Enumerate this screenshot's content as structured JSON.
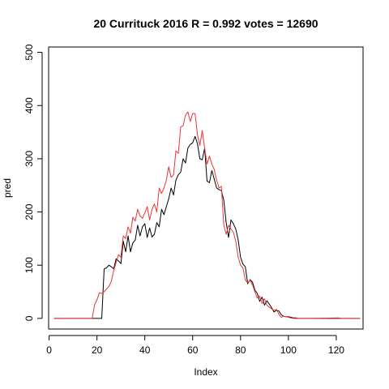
{
  "chart_data": {
    "type": "line",
    "title": "20 Currituck 2016 R = 0.992 votes = 12690",
    "xlabel": "Index",
    "ylabel": "pred",
    "xlim": [
      -0.2,
      131.2
    ],
    "ylim": [
      -20,
      510
    ],
    "xticks": [
      0,
      20,
      40,
      60,
      80,
      100,
      120
    ],
    "yticks": [
      0,
      100,
      200,
      300,
      400,
      500
    ],
    "grid": false,
    "legend": "none",
    "series": [
      {
        "color": "#000000",
        "x": [
          2,
          19,
          20,
          21,
          22,
          23,
          24,
          25,
          26,
          27,
          28,
          29,
          30,
          31,
          32,
          33,
          34,
          35,
          36,
          37,
          38,
          39,
          40,
          41,
          42,
          43,
          44,
          45,
          46,
          47,
          48,
          49,
          50,
          51,
          52,
          53,
          54,
          55,
          56,
          57,
          58,
          59,
          60,
          61,
          62,
          63,
          64,
          65,
          66,
          67,
          68,
          69,
          70,
          71,
          72,
          73,
          74,
          75,
          76,
          77,
          78,
          79,
          80,
          81,
          82,
          83,
          84,
          85,
          86,
          87,
          88,
          89,
          90,
          91,
          92,
          93,
          94,
          95,
          96,
          97,
          98,
          99,
          100,
          101,
          102,
          103,
          104,
          105,
          110,
          121,
          122,
          130
        ],
        "y": [
          0,
          0,
          0,
          0,
          0,
          93,
          95,
          100,
          97,
          93,
          112,
          108,
          103,
          145,
          125,
          155,
          125,
          142,
          147,
          175,
          155,
          172,
          178,
          152,
          170,
          153,
          158,
          180,
          172,
          205,
          195,
          210,
          225,
          245,
          232,
          260,
          270,
          275,
          300,
          292,
          320,
          327,
          330,
          342,
          328,
          300,
          298,
          320,
          258,
          255,
          278,
          262,
          245,
          242,
          240,
          222,
          180,
          152,
          185,
          178,
          168,
          148,
          115,
          102,
          97,
          65,
          73,
          68,
          53,
          47,
          32,
          40,
          25,
          33,
          27,
          20,
          12,
          15,
          14,
          7,
          4,
          3,
          3,
          2,
          1,
          1,
          0,
          0,
          0,
          0,
          0,
          0
        ]
      },
      {
        "color": "#ee3333",
        "x": [
          2,
          18,
          19,
          20,
          21,
          22,
          23,
          24,
          25,
          26,
          27,
          28,
          29,
          30,
          31,
          32,
          33,
          34,
          35,
          36,
          37,
          38,
          39,
          40,
          41,
          42,
          43,
          44,
          45,
          46,
          47,
          48,
          49,
          50,
          51,
          52,
          53,
          54,
          55,
          56,
          57,
          58,
          59,
          60,
          61,
          62,
          63,
          64,
          65,
          66,
          67,
          68,
          69,
          70,
          71,
          72,
          73,
          74,
          75,
          76,
          77,
          78,
          79,
          80,
          81,
          82,
          83,
          84,
          85,
          86,
          87,
          88,
          89,
          90,
          91,
          92,
          93,
          94,
          95,
          96,
          97,
          98,
          99,
          100,
          101,
          102,
          103,
          104,
          105,
          110,
          121,
          122,
          130
        ],
        "y": [
          0,
          0,
          25,
          35,
          48,
          47,
          50,
          55,
          60,
          70,
          90,
          105,
          120,
          115,
          155,
          150,
          172,
          160,
          190,
          183,
          205,
          193,
          188,
          198,
          210,
          185,
          205,
          215,
          200,
          245,
          235,
          245,
          260,
          285,
          265,
          270,
          315,
          310,
          360,
          362,
          382,
          388,
          370,
          385,
          385,
          345,
          325,
          353,
          320,
          290,
          305,
          290,
          280,
          260,
          245,
          248,
          175,
          158,
          175,
          168,
          162,
          145,
          115,
          100,
          95,
          72,
          67,
          72,
          63,
          50,
          38,
          42,
          28,
          37,
          25,
          21,
          18,
          15,
          17,
          8,
          2,
          4,
          3,
          2,
          1,
          0,
          0,
          0,
          0,
          0,
          1,
          0,
          0
        ]
      }
    ]
  }
}
